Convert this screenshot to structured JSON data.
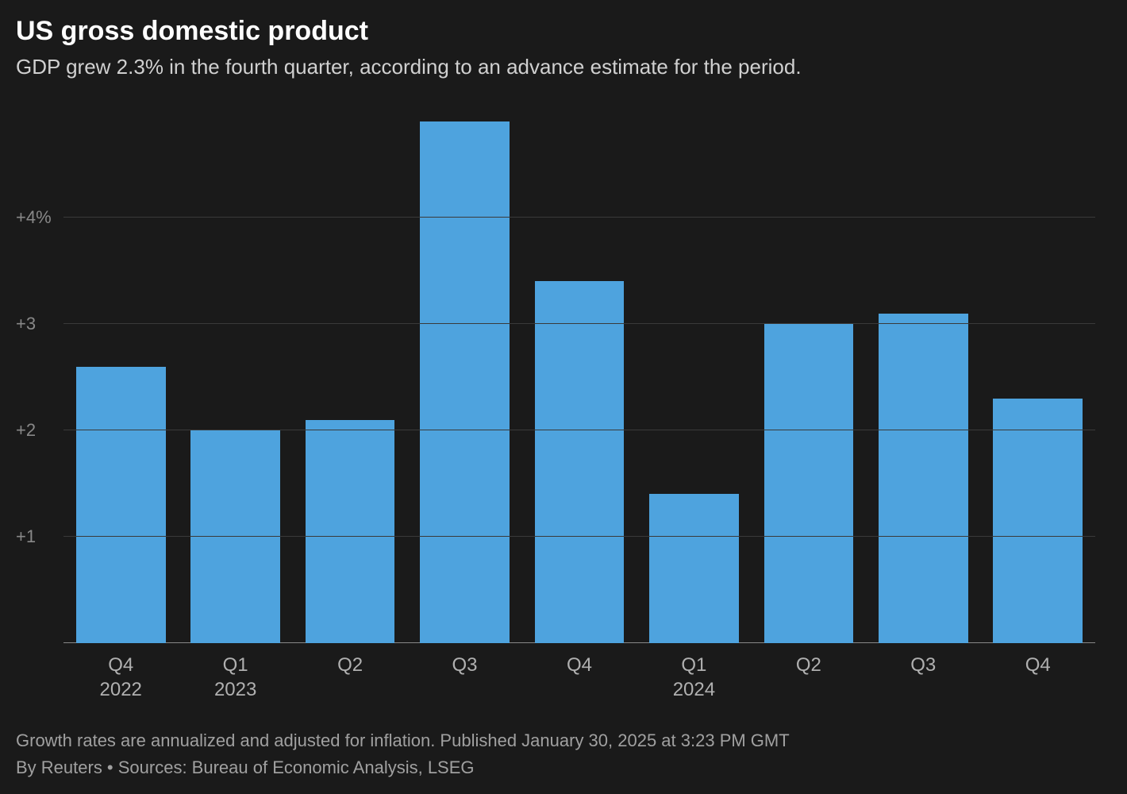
{
  "title": "US gross domestic product",
  "subtitle": "GDP grew 2.3% in the fourth quarter, according to an advance estimate for the period.",
  "note": "Growth rates are annualized and adjusted for inflation. Published January 30, 2025 at 3:23 PM GMT",
  "source": "By Reuters • Sources: Bureau of Economic Analysis, LSEG",
  "chart": {
    "type": "bar",
    "background_color": "#1a1a1a",
    "bar_color": "#4ea3de",
    "grid_color": "#3a3a3a",
    "baseline_color": "#888888",
    "text_color": "#ffffff",
    "muted_text_color": "#888888",
    "title_fontsize": 34,
    "subtitle_fontsize": 26,
    "axis_fontsize": 22,
    "bar_width": 0.78,
    "ylim": [
      0,
      5
    ],
    "yticks": [
      {
        "v": 1,
        "label": "+1"
      },
      {
        "v": 2,
        "label": "+2"
      },
      {
        "v": 3,
        "label": "+3"
      },
      {
        "v": 4,
        "label": "+4%"
      }
    ],
    "categories": [
      {
        "quarter": "Q4",
        "year": "2022",
        "value": 2.6
      },
      {
        "quarter": "Q1",
        "year": "2023",
        "value": 2.0
      },
      {
        "quarter": "Q2",
        "year": "",
        "value": 2.1
      },
      {
        "quarter": "Q3",
        "year": "",
        "value": 4.9
      },
      {
        "quarter": "Q4",
        "year": "",
        "value": 3.4
      },
      {
        "quarter": "Q1",
        "year": "2024",
        "value": 1.4
      },
      {
        "quarter": "Q2",
        "year": "",
        "value": 3.0
      },
      {
        "quarter": "Q3",
        "year": "",
        "value": 3.1
      },
      {
        "quarter": "Q4",
        "year": "",
        "value": 2.3
      }
    ]
  }
}
